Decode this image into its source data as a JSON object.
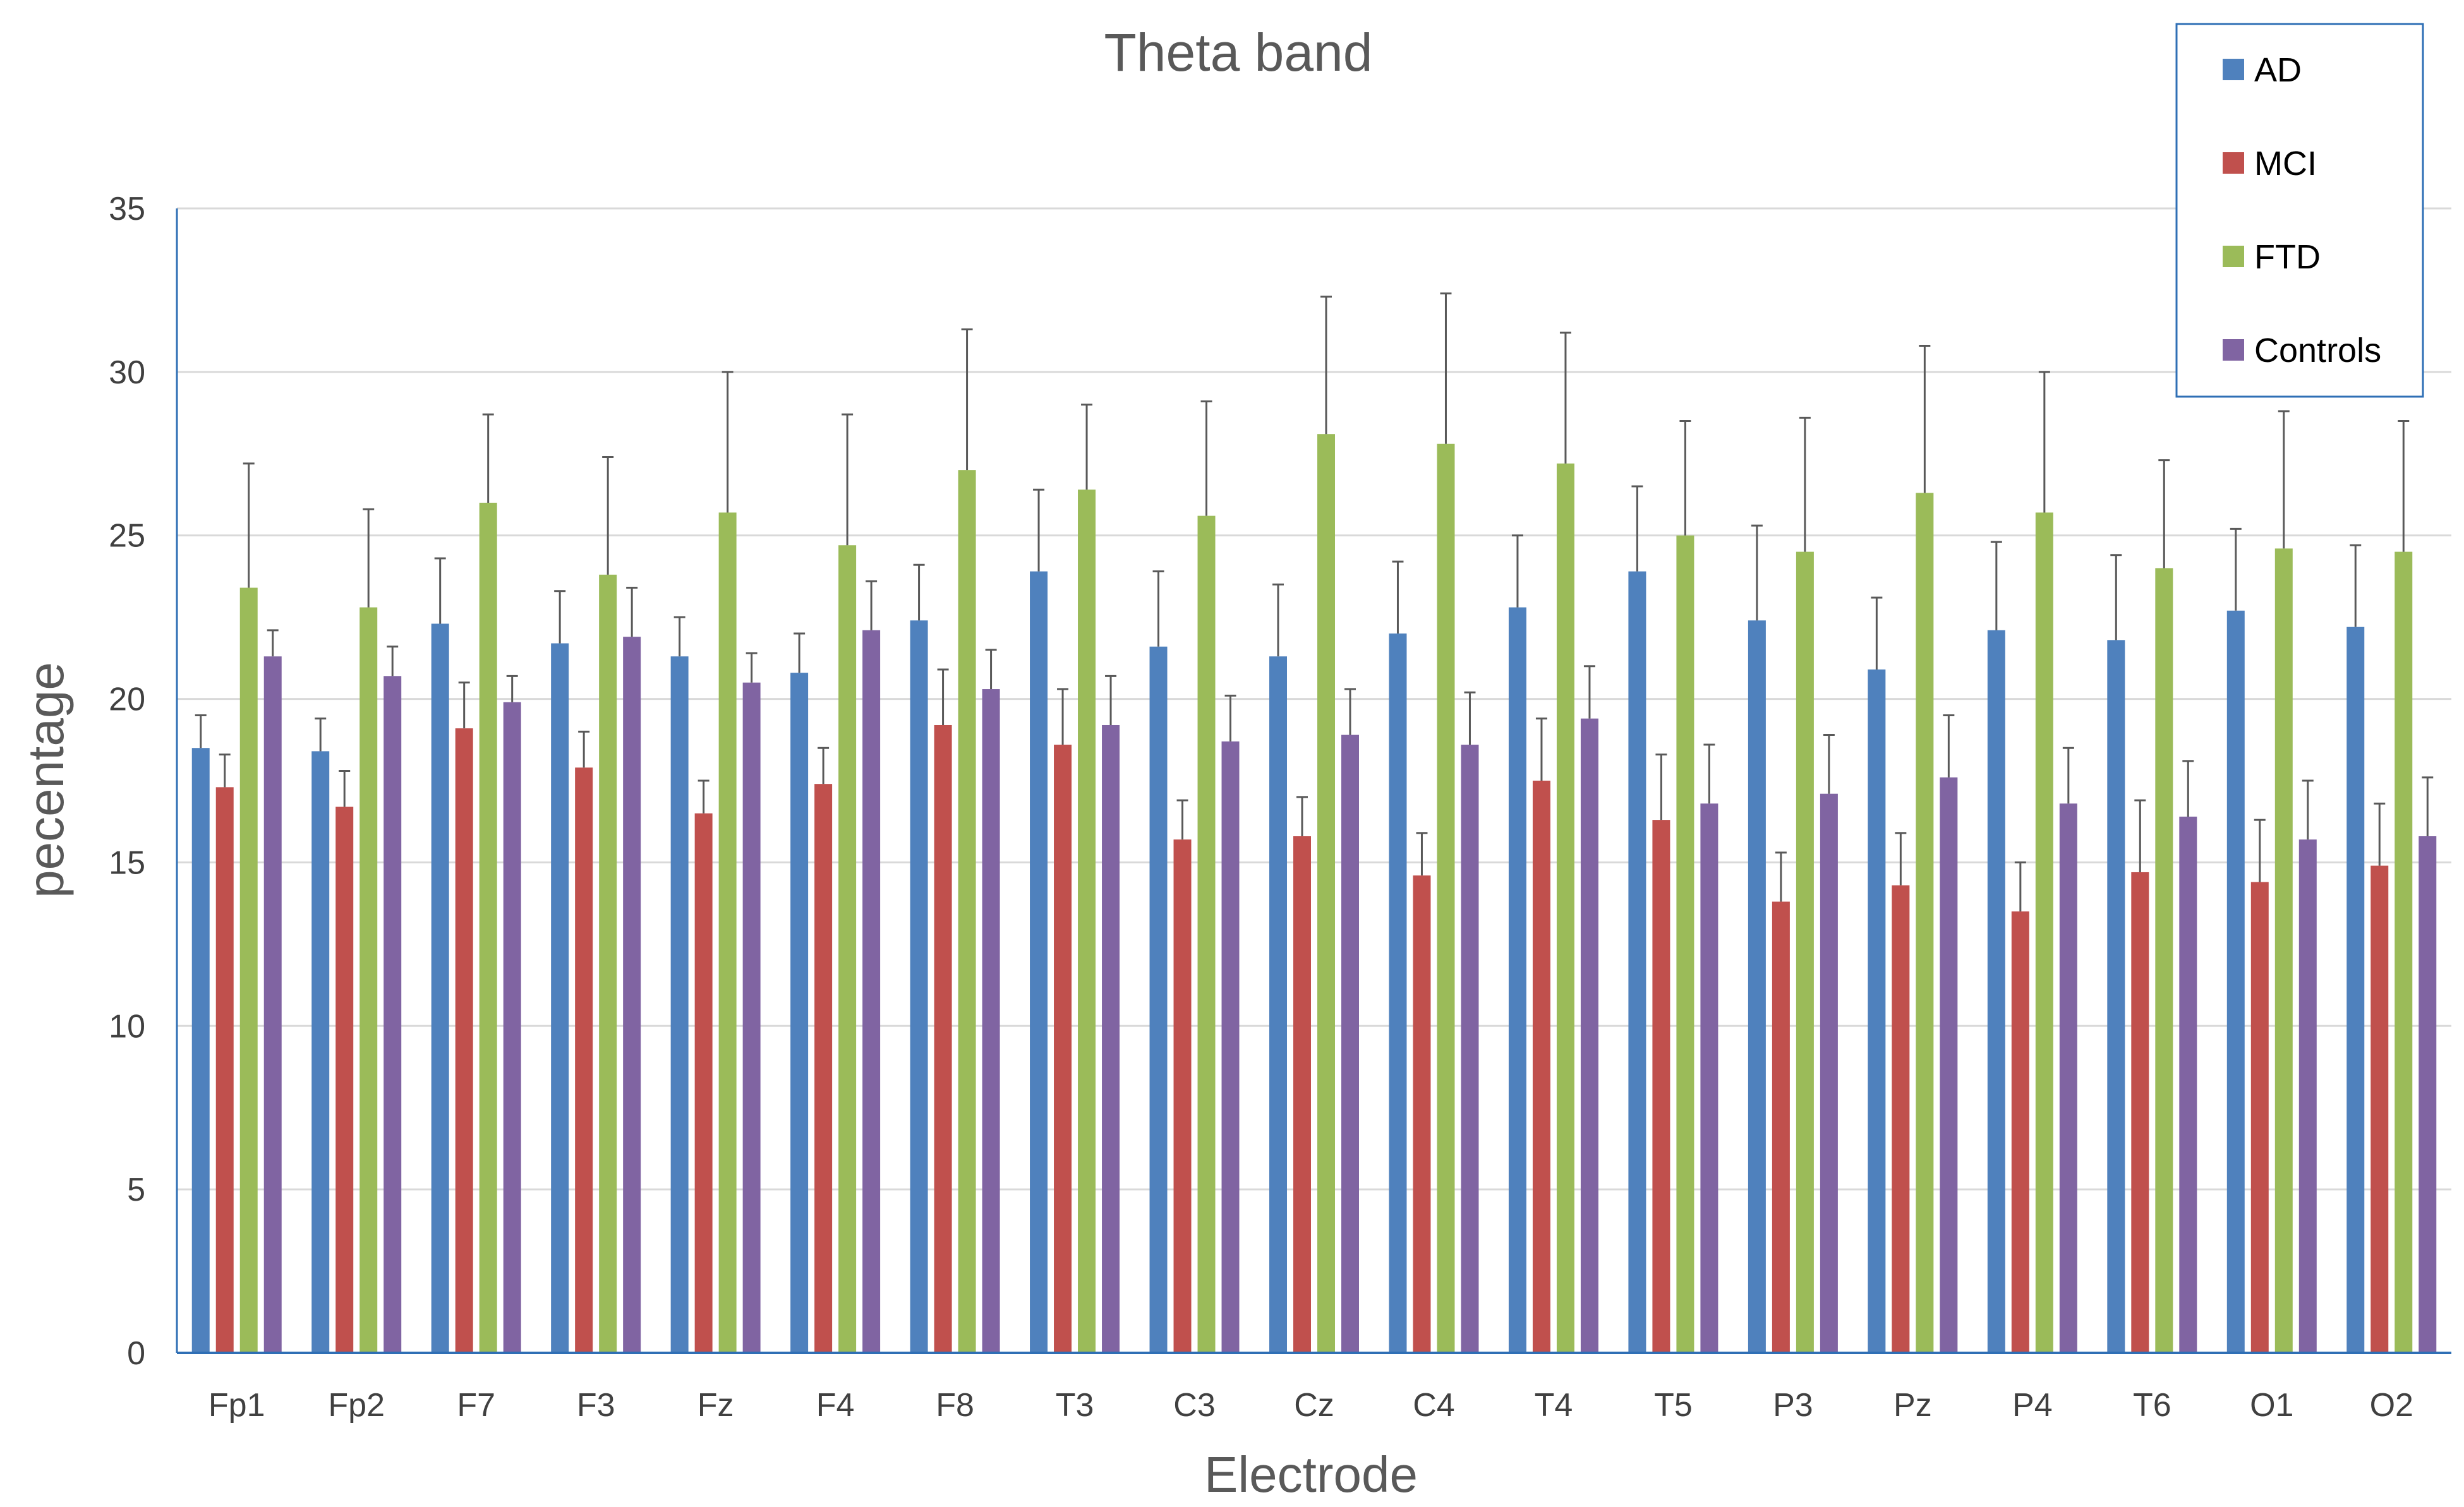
{
  "chart_data": {
    "type": "bar",
    "title": "Theta band",
    "xlabel": "Electrode",
    "ylabel": "pecentage",
    "ylim": [
      0,
      35
    ],
    "yticks": [
      0,
      5,
      10,
      15,
      20,
      25,
      30,
      35
    ],
    "grid": true,
    "legend_position": "top-right",
    "categories": [
      "Fp1",
      "Fp2",
      "F7",
      "F3",
      "Fz",
      "F4",
      "F8",
      "T3",
      "C3",
      "Cz",
      "C4",
      "T4",
      "T5",
      "P3",
      "Pz",
      "P4",
      "T6",
      "O1",
      "O2"
    ],
    "series": [
      {
        "name": "AD",
        "color": "#4F81BD",
        "values": [
          18.5,
          18.4,
          22.3,
          21.7,
          21.3,
          20.8,
          22.4,
          23.9,
          21.6,
          21.3,
          22.0,
          22.8,
          23.9,
          22.4,
          20.9,
          22.1,
          21.8,
          22.7,
          22.2
        ],
        "errors": [
          1.0,
          1.0,
          2.0,
          1.6,
          1.2,
          1.2,
          1.7,
          2.5,
          2.3,
          2.2,
          2.2,
          2.2,
          2.6,
          2.9,
          2.2,
          2.7,
          2.6,
          2.5,
          2.5
        ]
      },
      {
        "name": "MCI",
        "color": "#C0504D",
        "values": [
          17.3,
          16.7,
          19.1,
          17.9,
          16.5,
          17.4,
          19.2,
          18.6,
          15.7,
          15.8,
          14.6,
          17.5,
          16.3,
          13.8,
          14.3,
          13.5,
          14.7,
          14.4,
          14.9
        ],
        "errors": [
          1.0,
          1.1,
          1.4,
          1.1,
          1.0,
          1.1,
          1.7,
          1.7,
          1.2,
          1.2,
          1.3,
          1.9,
          2.0,
          1.5,
          1.6,
          1.5,
          2.2,
          1.9,
          1.9
        ]
      },
      {
        "name": "FTD",
        "color": "#9BBB59",
        "values": [
          23.4,
          22.8,
          26.0,
          23.8,
          25.7,
          24.7,
          27.0,
          26.4,
          25.6,
          28.1,
          27.8,
          27.2,
          25.0,
          24.5,
          26.3,
          25.7,
          24.0,
          24.6,
          24.5
        ],
        "errors": [
          3.8,
          3.0,
          2.7,
          3.6,
          4.3,
          4.0,
          4.3,
          2.6,
          3.5,
          4.2,
          4.6,
          4.0,
          3.5,
          4.1,
          4.5,
          4.3,
          3.3,
          4.2,
          4.0
        ]
      },
      {
        "name": "Controls",
        "color": "#8064A2",
        "values": [
          21.3,
          20.7,
          19.9,
          21.9,
          20.5,
          22.1,
          20.3,
          19.2,
          18.7,
          18.9,
          18.6,
          19.4,
          16.8,
          17.1,
          17.6,
          16.8,
          16.4,
          15.7,
          15.8
        ],
        "errors": [
          0.8,
          0.9,
          0.8,
          1.5,
          0.9,
          1.5,
          1.2,
          1.5,
          1.4,
          1.4,
          1.6,
          1.6,
          1.8,
          1.8,
          1.9,
          1.7,
          1.7,
          1.8,
          1.8
        ]
      }
    ]
  }
}
